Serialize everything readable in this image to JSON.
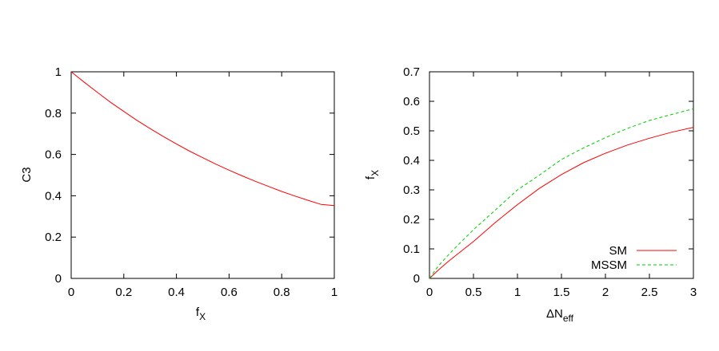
{
  "chart_data": [
    {
      "type": "line",
      "ylabel": "C3",
      "xlabel_main": "f",
      "xlabel_sub": "X",
      "xlim": [
        0,
        1
      ],
      "ylim": [
        0,
        1
      ],
      "xticks": [
        "0",
        "0.2",
        "0.4",
        "0.6",
        "0.8",
        "1"
      ],
      "yticks": [
        "0",
        "0.2",
        "0.4",
        "0.6",
        "0.8",
        "1"
      ],
      "series": [
        {
          "color": "#ff0000",
          "dash": "solid",
          "x": [
            0,
            0.05,
            0.1,
            0.15,
            0.2,
            0.25,
            0.3,
            0.35,
            0.4,
            0.45,
            0.5,
            0.55,
            0.6,
            0.65,
            0.7,
            0.75,
            0.8,
            0.85,
            0.9,
            0.95,
            1
          ],
          "y": [
            1.0,
            0.949,
            0.9,
            0.852,
            0.808,
            0.765,
            0.725,
            0.687,
            0.651,
            0.616,
            0.584,
            0.553,
            0.524,
            0.496,
            0.47,
            0.445,
            0.421,
            0.399,
            0.378,
            0.358,
            0.352
          ]
        }
      ]
    },
    {
      "type": "line",
      "ylabel_main": "f",
      "ylabel_sub": "X",
      "xlabel_prefix": "ΔN",
      "xlabel_sub": "eff",
      "xlim": [
        0,
        3
      ],
      "ylim": [
        0,
        0.7
      ],
      "xticks": [
        "0",
        "0.5",
        "1",
        "1.5",
        "2",
        "2.5",
        "3"
      ],
      "yticks": [
        "0",
        "0.1",
        "0.2",
        "0.3",
        "0.4",
        "0.5",
        "0.6",
        "0.7"
      ],
      "legend_position": "bottom-right",
      "series": [
        {
          "name": "SM",
          "color": "#ff0000",
          "dash": "solid",
          "x": [
            0,
            0.1,
            0.2,
            0.3,
            0.5,
            0.75,
            1.0,
            1.25,
            1.5,
            1.75,
            2.0,
            2.25,
            2.5,
            2.75,
            3.0
          ],
          "y": [
            0,
            0.028,
            0.054,
            0.078,
            0.125,
            0.19,
            0.25,
            0.305,
            0.352,
            0.392,
            0.424,
            0.452,
            0.475,
            0.495,
            0.512
          ]
        },
        {
          "name": "MSSM",
          "color": "#00cc00",
          "dash": "dashed",
          "x": [
            0,
            0.1,
            0.2,
            0.3,
            0.5,
            0.75,
            1.0,
            1.25,
            1.5,
            1.75,
            2.0,
            2.25,
            2.5,
            2.75,
            3.0
          ],
          "y": [
            0,
            0.042,
            0.075,
            0.106,
            0.165,
            0.232,
            0.3,
            0.35,
            0.403,
            0.442,
            0.477,
            0.508,
            0.535,
            0.555,
            0.575
          ]
        }
      ]
    }
  ]
}
